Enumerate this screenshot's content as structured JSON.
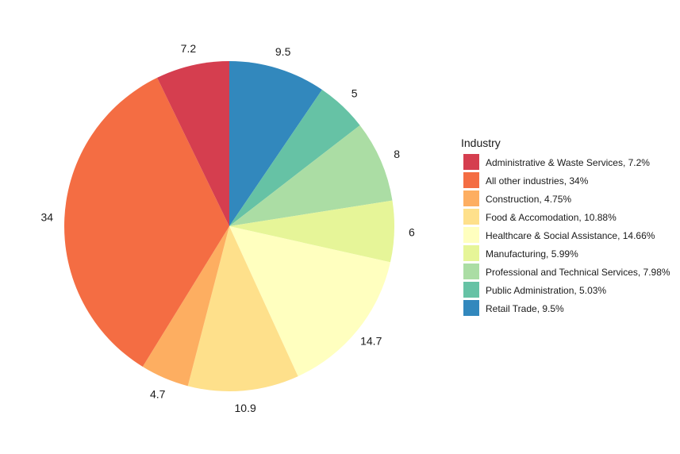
{
  "chart_data": {
    "type": "pie",
    "legend_title": "Industry",
    "legend_position": "right",
    "start_angle_deg": 0,
    "direction": "clockwise",
    "slices": [
      {
        "name": "Retail Trade",
        "legend_label": "Retail Trade, 9.5%",
        "value": 9.5,
        "label": "9.5",
        "color": "#3288BD"
      },
      {
        "name": "Public Administration",
        "legend_label": "Public Administration, 5.03%",
        "value": 5.03,
        "label": "5",
        "color": "#66C2A5"
      },
      {
        "name": "Professional and Technical Services",
        "legend_label": "Professional and Technical Services, 7.98%",
        "value": 7.98,
        "label": "8",
        "color": "#ABDDA4"
      },
      {
        "name": "Manufacturing",
        "legend_label": "Manufacturing, 5.99%",
        "value": 5.99,
        "label": "6",
        "color": "#E6F598"
      },
      {
        "name": "Healthcare & Social Assistance",
        "legend_label": "Healthcare & Social Assistance, 14.66%",
        "value": 14.66,
        "label": "14.7",
        "color": "#FFFFBF"
      },
      {
        "name": "Food & Accomodation",
        "legend_label": "Food & Accomodation, 10.88%",
        "value": 10.88,
        "label": "10.9",
        "color": "#FEE08B"
      },
      {
        "name": "Construction",
        "legend_label": "Construction, 4.75%",
        "value": 4.75,
        "label": "4.7",
        "color": "#FDAE61"
      },
      {
        "name": "All other industries",
        "legend_label": "All other industries, 34%",
        "value": 34,
        "label": "34",
        "color": "#F46D43"
      },
      {
        "name": "Administrative & Waste Services",
        "legend_label": "Administrative & Waste Services, 7.2%",
        "value": 7.2,
        "label": "7.2",
        "color": "#D53E4F"
      }
    ],
    "legend_order": [
      "Administrative & Waste Services",
      "All other industries",
      "Construction",
      "Food & Accomodation",
      "Healthcare & Social Assistance",
      "Manufacturing",
      "Professional and Technical Services",
      "Public Administration",
      "Retail Trade"
    ]
  }
}
